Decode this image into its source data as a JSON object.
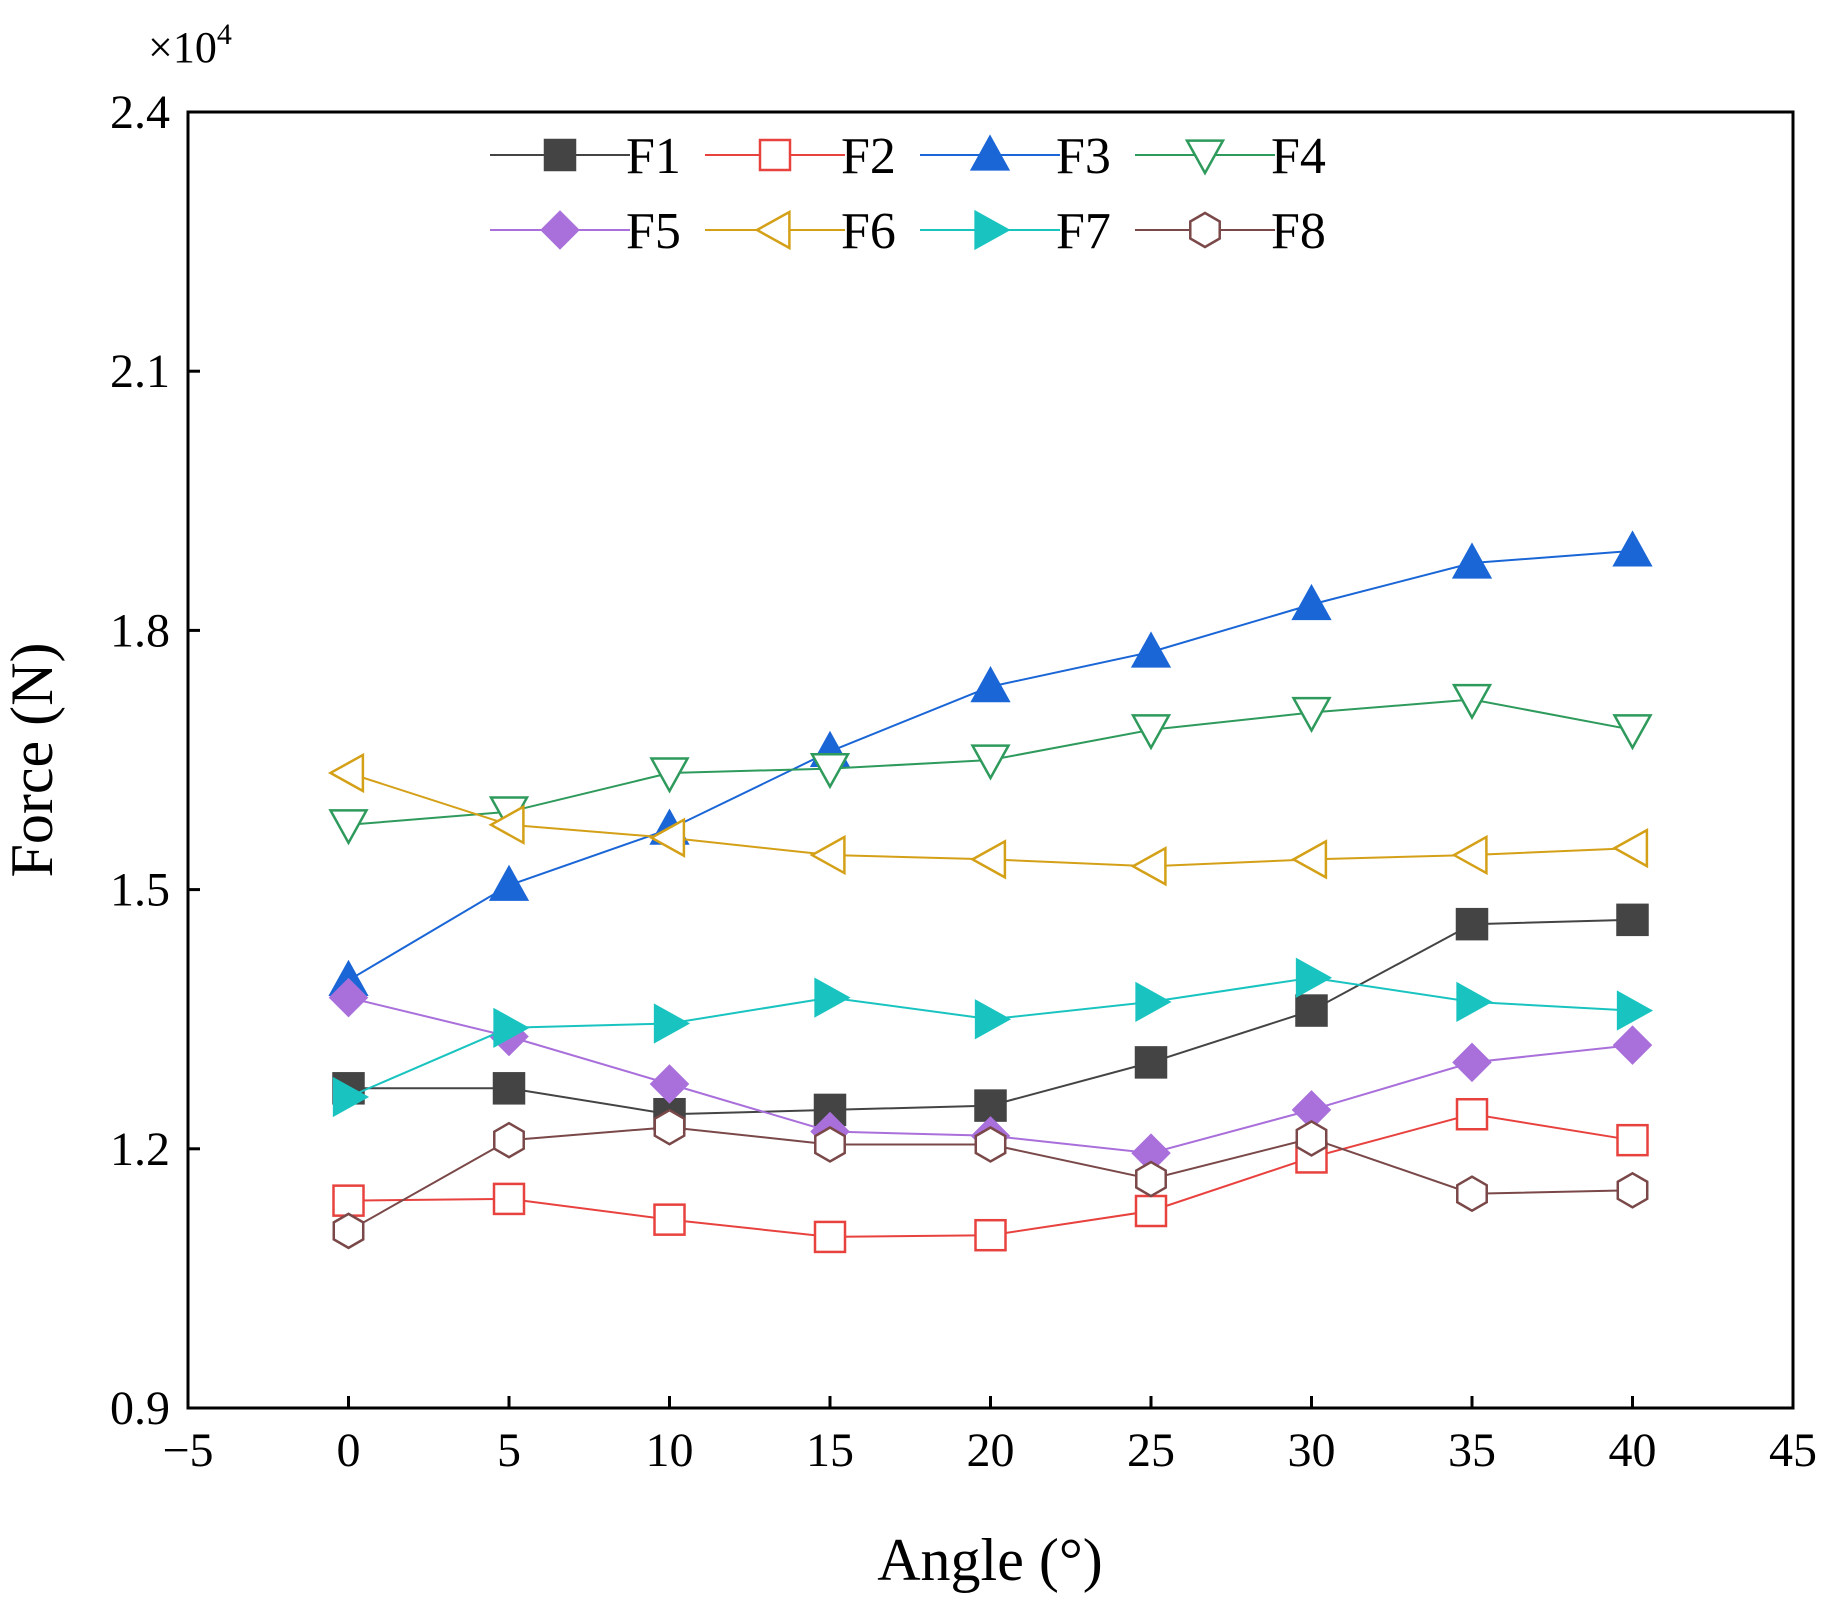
{
  "chart_data": {
    "type": "line",
    "title": "",
    "xlabel": "Angle  (°)",
    "ylabel": "Force (N)",
    "y_multiplier": {
      "base": "×10",
      "exponent": "4"
    },
    "xlim": [
      -5,
      45
    ],
    "ylim": [
      0.9,
      2.4
    ],
    "xticks": [
      -5,
      0,
      5,
      10,
      15,
      20,
      25,
      30,
      35,
      40,
      45
    ],
    "xtick_labels": [
      "−5",
      "0",
      "5",
      "10",
      "15",
      "20",
      "25",
      "30",
      "35",
      "40",
      "45"
    ],
    "yticks": [
      0.9,
      1.2,
      1.5,
      1.8,
      2.1,
      2.4
    ],
    "ytick_labels": [
      "0.9",
      "1.2",
      "1.5",
      "1.8",
      "2.1",
      "2.4"
    ],
    "grid": false,
    "legend": "top-center",
    "x": [
      0,
      5,
      10,
      15,
      20,
      25,
      30,
      35,
      40
    ],
    "series": [
      {
        "name": "F1",
        "color": "#444444",
        "marker": "square-filled",
        "values": [
          1.27,
          1.27,
          1.24,
          1.245,
          1.25,
          1.3,
          1.36,
          1.46,
          1.465
        ]
      },
      {
        "name": "F2",
        "color": "#e8423f",
        "marker": "square-open",
        "values": [
          1.14,
          1.142,
          1.118,
          1.098,
          1.1,
          1.128,
          1.19,
          1.24,
          1.21
        ]
      },
      {
        "name": "F3",
        "color": "#1a66d6",
        "marker": "triangle-up-filled",
        "values": [
          1.395,
          1.505,
          1.57,
          1.66,
          1.735,
          1.775,
          1.83,
          1.878,
          1.892
        ]
      },
      {
        "name": "F4",
        "color": "#2e9a5c",
        "marker": "triangle-down-open",
        "values": [
          1.575,
          1.59,
          1.635,
          1.64,
          1.65,
          1.685,
          1.705,
          1.72,
          1.685
        ]
      },
      {
        "name": "F5",
        "color": "#a96fdb",
        "marker": "diamond-filled",
        "values": [
          1.375,
          1.33,
          1.275,
          1.22,
          1.215,
          1.195,
          1.245,
          1.3,
          1.32
        ]
      },
      {
        "name": "F6",
        "color": "#d4a017",
        "marker": "triangle-left-open",
        "values": [
          1.635,
          1.575,
          1.56,
          1.54,
          1.535,
          1.527,
          1.535,
          1.54,
          1.548
        ]
      },
      {
        "name": "F7",
        "color": "#19c4c0",
        "marker": "triangle-right-filled",
        "values": [
          1.26,
          1.34,
          1.345,
          1.375,
          1.35,
          1.37,
          1.398,
          1.37,
          1.36
        ]
      },
      {
        "name": "F8",
        "color": "#7a4848",
        "marker": "hexagon-open",
        "values": [
          1.105,
          1.21,
          1.225,
          1.205,
          1.205,
          1.165,
          1.212,
          1.148,
          1.152
        ]
      }
    ]
  }
}
